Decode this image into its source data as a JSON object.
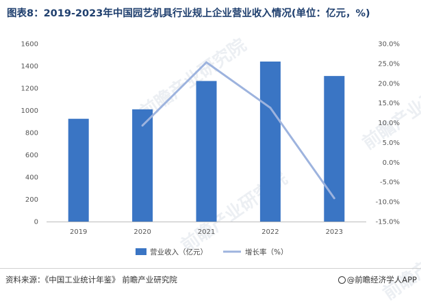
{
  "title": "图表8：2019-2023年中国园艺机具行业规上企业营业收入情况(单位：亿元，%)",
  "watermark": "前瞻产业研究院",
  "footer": {
    "source": "资料来源：《中国工业统计年鉴》 前瞻产业研究院",
    "brand": "@前瞻经济学人APP"
  },
  "colors": {
    "bar": "#3a75c4",
    "line": "#9db3de",
    "title": "#1f3f6e"
  },
  "chart_data": {
    "type": "bar",
    "categories": [
      "2019",
      "2020",
      "2021",
      "2022",
      "2023"
    ],
    "series": [
      {
        "name": "营业收入（亿元）",
        "type": "bar",
        "axis": "left",
        "values": [
          925,
          1010,
          1265,
          1440,
          1310
        ]
      },
      {
        "name": "增长率（%）",
        "type": "line",
        "axis": "right",
        "values": [
          null,
          9.3,
          25.3,
          13.8,
          -9.1
        ]
      }
    ],
    "y_left": {
      "min": 0,
      "max": 1600,
      "ticks": [
        "0",
        "200",
        "400",
        "600",
        "800",
        "1000",
        "1200",
        "1400",
        "1600"
      ]
    },
    "y_right": {
      "min": -15,
      "max": 30,
      "ticks": [
        "-15.0%",
        "-10.0%",
        "-5.0%",
        "0.0%",
        "5.0%",
        "10.0%",
        "15.0%",
        "20.0%",
        "25.0%",
        "30.0%"
      ]
    },
    "legend_position": "bottom"
  }
}
